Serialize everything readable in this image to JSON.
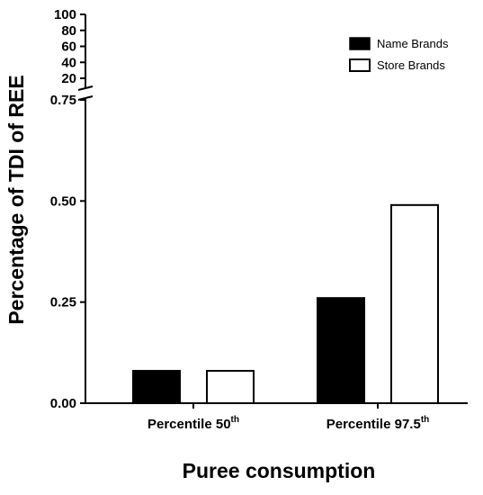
{
  "chart_data": {
    "type": "bar",
    "categories": [
      {
        "base": "Percentile 50",
        "sup": "th"
      },
      {
        "base": "Percentile 97.5",
        "sup": "th"
      }
    ],
    "series": [
      {
        "name": "Name Brands",
        "fill": "#000000",
        "values": [
          0.08,
          0.26
        ]
      },
      {
        "name": "Store Brands",
        "fill": "#ffffff",
        "values": [
          0.08,
          0.49
        ]
      }
    ],
    "xlabel": "Puree consumption",
    "ylabel": "Percentage of TDI of REE",
    "y_axis_broken": true,
    "ylim_lower": [
      0,
      0.75
    ],
    "yticks_lower": [
      "0.00",
      "0.25",
      "0.50",
      "0.75"
    ],
    "ylim_upper": [
      20,
      100
    ],
    "yticks_upper": [
      "20",
      "40",
      "60",
      "80",
      "100"
    ],
    "legend_position": "top-right",
    "grid": false
  }
}
